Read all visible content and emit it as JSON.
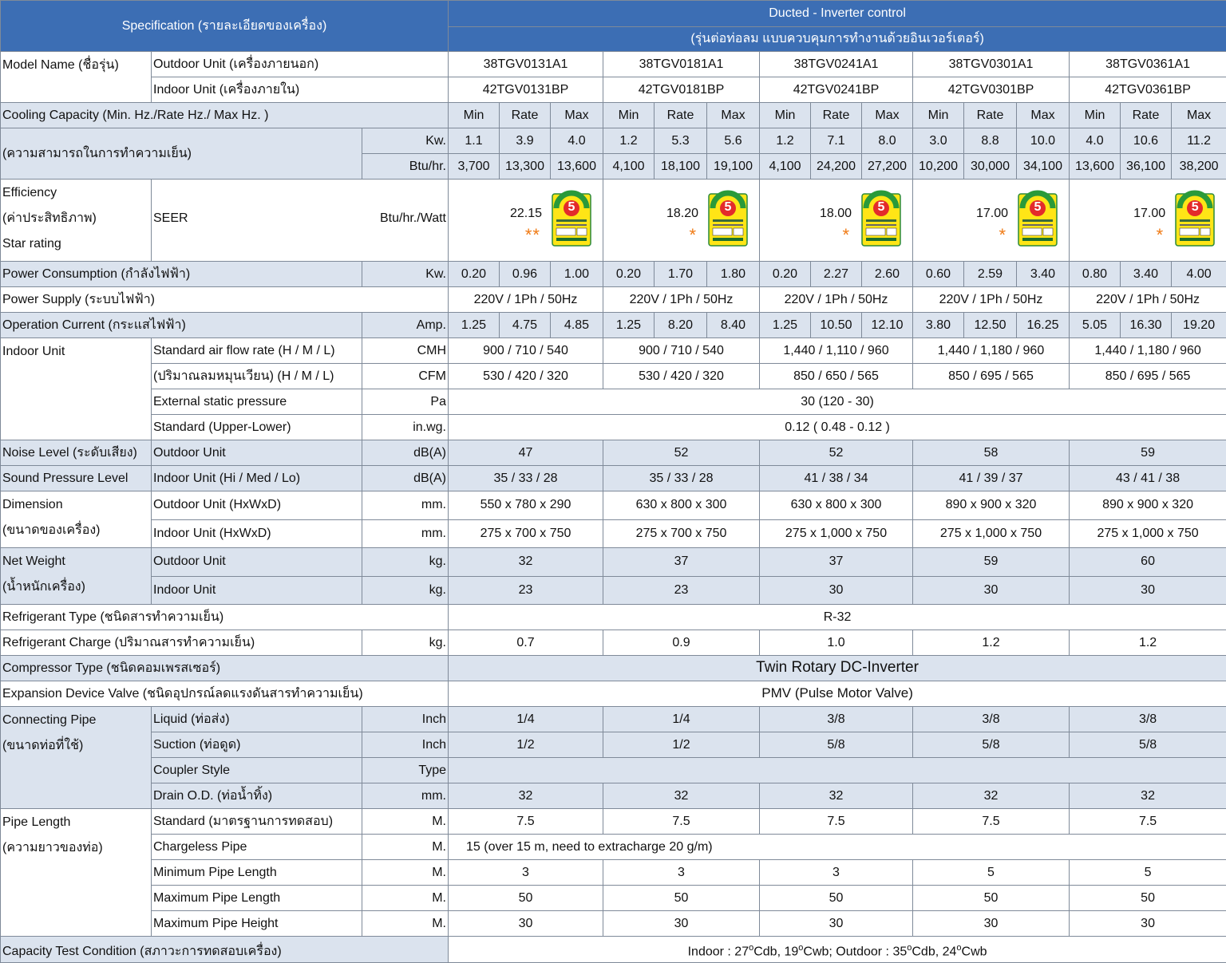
{
  "header": {
    "spec_title": "Specification (รายละเอียดของเครื่อง)",
    "product_title": "Ducted - Inverter control",
    "product_subtitle": "(รุ่นต่อท่อลม แบบควบคุมการทำงานด้วยอินเวอร์เตอร์)"
  },
  "model_name": {
    "label": "Model Name (ชื่อรุ่น)",
    "outdoor_label": "Outdoor Unit (เครื่องภายนอก)",
    "indoor_label": "Indoor Unit (เครื่องภายใน)",
    "outdoor": [
      "38TGV0131A1",
      "38TGV0181A1",
      "38TGV0241A1",
      "38TGV0301A1",
      "38TGV0361A1"
    ],
    "indoor": [
      "42TGV0131BP",
      "42TGV0181BP",
      "42TGV0241BP",
      "42TGV0301BP",
      "42TGV0361BP"
    ]
  },
  "cooling": {
    "label1": "Cooling Capacity (Min. Hz./Rate Hz./ Max Hz. )",
    "label2": "(ความสามารถในการทำความเย็น)",
    "subhead": [
      "Min",
      "Rate",
      "Max"
    ],
    "kw_unit": "Kw.",
    "btu_unit": "Btu/hr.",
    "kw": [
      [
        "1.1",
        "3.9",
        "4.0"
      ],
      [
        "1.2",
        "5.3",
        "5.6"
      ],
      [
        "1.2",
        "7.1",
        "8.0"
      ],
      [
        "3.0",
        "8.8",
        "10.0"
      ],
      [
        "4.0",
        "10.6",
        "11.2"
      ]
    ],
    "btu": [
      [
        "3,700",
        "13,300",
        "13,600"
      ],
      [
        "4,100",
        "18,100",
        "19,100"
      ],
      [
        "4,100",
        "24,200",
        "27,200"
      ],
      [
        "10,200",
        "30,000",
        "34,100"
      ],
      [
        "13,600",
        "36,100",
        "38,200"
      ]
    ]
  },
  "efficiency": {
    "label1": "Efficiency",
    "label2": "(ค่าประสิทธิภาพ)",
    "label3": "Star rating",
    "seer_label": "SEER",
    "unit": "Btu/hr./Watt",
    "seer": [
      "22.15",
      "18.20",
      "18.00",
      "17.00",
      "17.00"
    ],
    "stars": [
      "**",
      "*",
      "*",
      "*",
      "*"
    ],
    "label_number": "5"
  },
  "power_consumption": {
    "label": "Power Consumption (กำลังไฟฟ้า)",
    "unit": "Kw.",
    "values": [
      [
        "0.20",
        "0.96",
        "1.00"
      ],
      [
        "0.20",
        "1.70",
        "1.80"
      ],
      [
        "0.20",
        "2.27",
        "2.60"
      ],
      [
        "0.60",
        "2.59",
        "3.40"
      ],
      [
        "0.80",
        "3.40",
        "4.00"
      ]
    ]
  },
  "power_supply": {
    "label": "Power Supply (ระบบไฟฟ้า)",
    "values": [
      "220V / 1Ph / 50Hz",
      "220V / 1Ph / 50Hz",
      "220V / 1Ph / 50Hz",
      "220V / 1Ph / 50Hz",
      "220V / 1Ph / 50Hz"
    ]
  },
  "operation_current": {
    "label": "Operation Current (กระแสไฟฟ้า)",
    "unit": "Amp.",
    "values": [
      [
        "1.25",
        "4.75",
        "4.85"
      ],
      [
        "1.25",
        "8.20",
        "8.40"
      ],
      [
        "1.25",
        "10.50",
        "12.10"
      ],
      [
        "3.80",
        "12.50",
        "16.25"
      ],
      [
        "5.05",
        "16.30",
        "19.20"
      ]
    ]
  },
  "indoor_unit": {
    "label": "Indoor Unit",
    "airflow_label": "Standard air flow rate (H / M / L)",
    "airflow_unit": "CMH",
    "airflow": [
      "900 / 710 / 540",
      "900 / 710 / 540",
      "1,440 / 1,110 / 960",
      "1,440 / 1,180 / 960",
      "1,440 / 1,180 / 960"
    ],
    "airflow_cfm_label": "(ปริมาณลมหมุนเวียน) (H / M / L)",
    "airflow_cfm_unit": "CFM",
    "airflow_cfm": [
      "530 / 420 / 320",
      "530 / 420 / 320",
      "850 / 650 / 565",
      "850 / 695 / 565",
      "850 / 695 / 565"
    ],
    "esp_label": "External static pressure",
    "esp_unit": "Pa",
    "esp_value": "30 (120 - 30)",
    "std_label": "Standard (Upper-Lower)",
    "std_unit": "in.wg.",
    "std_value": "0.12 ( 0.48 - 0.12 )"
  },
  "noise": {
    "label": "Noise Level (ระดับเสียง)",
    "label2": "Sound Pressure Level",
    "outdoor_label": "Outdoor Unit",
    "indoor_label": "Indoor Unit (Hi / Med / Lo)",
    "unit": "dB(A)",
    "outdoor": [
      "47",
      "52",
      "52",
      "58",
      "59"
    ],
    "indoor": [
      "35 / 33 / 28",
      "35 / 33 / 28",
      "41 / 38 / 34",
      "41 / 39 / 37",
      "43 / 41 / 38"
    ]
  },
  "dimension": {
    "label": "Dimension",
    "label2": "(ขนาดของเครื่อง)",
    "outdoor_label": "Outdoor Unit (HxWxD)",
    "indoor_label": "Indoor Unit (HxWxD)",
    "unit": "mm.",
    "outdoor": [
      "550 x 780 x 290",
      "630 x 800 x 300",
      "630 x 800 x 300",
      "890 x 900 x 320",
      "890 x 900 x 320"
    ],
    "indoor": [
      "275 x 700 x 750",
      "275 x 700 x 750",
      "275 x 1,000 x 750",
      "275 x 1,000 x 750",
      "275 x 1,000 x 750"
    ]
  },
  "net_weight": {
    "label": "Net Weight",
    "label2": "(น้ำหนักเครื่อง)",
    "outdoor_label": "Outdoor Unit",
    "indoor_label": "Indoor Unit",
    "unit": "kg.",
    "outdoor": [
      "32",
      "37",
      "37",
      "59",
      "60"
    ],
    "indoor": [
      "23",
      "23",
      "30",
      "30",
      "30"
    ]
  },
  "refrigerant_type": {
    "label": "Refrigerant Type (ชนิดสารทำความเย็น)",
    "value": "R-32"
  },
  "refrigerant_charge": {
    "label": "Refrigerant Charge (ปริมาณสารทำความเย็น)",
    "unit": "kg.",
    "values": [
      "0.7",
      "0.9",
      "1.0",
      "1.2",
      "1.2"
    ]
  },
  "compressor": {
    "label": "Compressor Type (ชนิดคอมเพรสเซอร์)",
    "value": "Twin Rotary DC-Inverter"
  },
  "expansion": {
    "label": "Expansion Device Valve (ชนิดอุปกรณ์ลดแรงดันสารทำความเย็น)",
    "value": "PMV (Pulse Motor Valve)"
  },
  "connecting_pipe": {
    "label": "Connecting Pipe",
    "label2": "(ขนาดท่อที่ใช้)",
    "liquid_label": "Liquid (ท่อส่ง)",
    "suction_label": "Suction (ท่อดูด)",
    "coupler_label": "Coupler Style",
    "drain_label": "Drain O.D. (ท่อน้ำทิ้ง)",
    "inch_unit": "Inch",
    "type_unit": "Type",
    "mm_unit": "mm.",
    "liquid": [
      "1/4",
      "1/4",
      "3/8",
      "3/8",
      "3/8"
    ],
    "suction": [
      "1/2",
      "1/2",
      "5/8",
      "5/8",
      "5/8"
    ],
    "drain": [
      "32",
      "32",
      "32",
      "32",
      "32"
    ]
  },
  "pipe_length": {
    "label": "Pipe Length",
    "label2": "(ความยาวของท่อ)",
    "unit": "M.",
    "standard_label": "Standard (มาตรฐานการทดสอบ)",
    "standard": [
      "7.5",
      "7.5",
      "7.5",
      "7.5",
      "7.5"
    ],
    "chargeless_label": "Chargeless Pipe",
    "chargeless_value": "15 (over 15 m, need to extracharge 20 g/m)",
    "min_label": "Minimum Pipe Length",
    "min": [
      "3",
      "3",
      "3",
      "5",
      "5"
    ],
    "max_label": "Maximum Pipe Length",
    "max": [
      "50",
      "50",
      "50",
      "50",
      "50"
    ],
    "height_label": "Maximum Pipe Height",
    "height": [
      "30",
      "30",
      "30",
      "30",
      "30"
    ]
  },
  "test_condition": {
    "label": "Capacity Test Condition (สภาวะการทดสอบเครื่อง)",
    "value_indoor": "Indoor : 27",
    "deg": "o",
    "cdb_sep": "Cdb, 19",
    "cwb_out": "Cwb; Outdoor : 35",
    "cdb_sep2": "Cdb, 24",
    "cwb_end": "Cwb"
  }
}
